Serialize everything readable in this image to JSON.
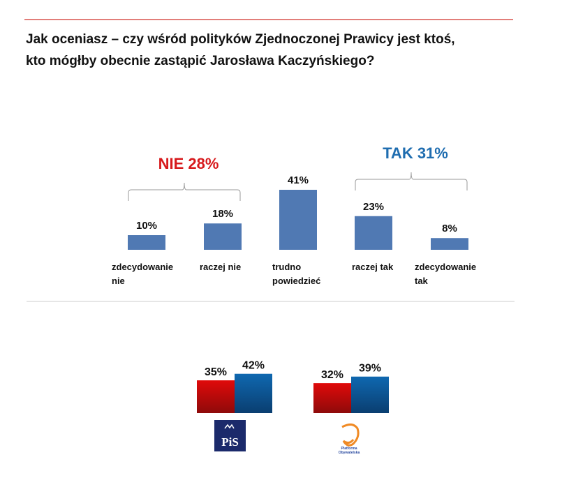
{
  "title_lines": [
    "Jak oceniasz – czy wśród polityków Zjednoczonej Prawicy jest ktoś,",
    "kto mógłby obecnie zastąpić Jarosława Kaczyńskiego?"
  ],
  "colors": {
    "bar": "#5079b3",
    "nie": "#d7191c",
    "tak": "#1f6db0",
    "red_bar": "#d40b0b",
    "blue_bar": "#0e63a8",
    "rule": "#d9534f"
  },
  "chart_data": [
    {
      "type": "bar",
      "categories": [
        [
          "zdecydowanie",
          "nie"
        ],
        [
          "raczej nie"
        ],
        [
          "trudno",
          "powiedzieć"
        ],
        [
          "raczej tak"
        ],
        [
          "zdecydowanie",
          "tak"
        ]
      ],
      "values": [
        10,
        18,
        41,
        23,
        8
      ],
      "value_labels": [
        "10%",
        "18%",
        "41%",
        "23%",
        "8%"
      ],
      "groups": [
        {
          "label": "NIE 28%",
          "from": 0,
          "to": 1,
          "color": "nie"
        },
        {
          "label": "TAK 31%",
          "from": 3,
          "to": 4,
          "color": "tak"
        }
      ]
    },
    {
      "type": "bar",
      "categories": [
        "PiS",
        "Platforma Obywatelska"
      ],
      "series": [
        {
          "name": "red",
          "values": [
            35,
            32
          ],
          "labels": [
            "35%",
            "32%"
          ]
        },
        {
          "name": "blue",
          "values": [
            42,
            39
          ],
          "labels": [
            "42%",
            "39%"
          ]
        }
      ],
      "logos": [
        "PiS",
        "Platforma Obywatelska"
      ]
    }
  ]
}
